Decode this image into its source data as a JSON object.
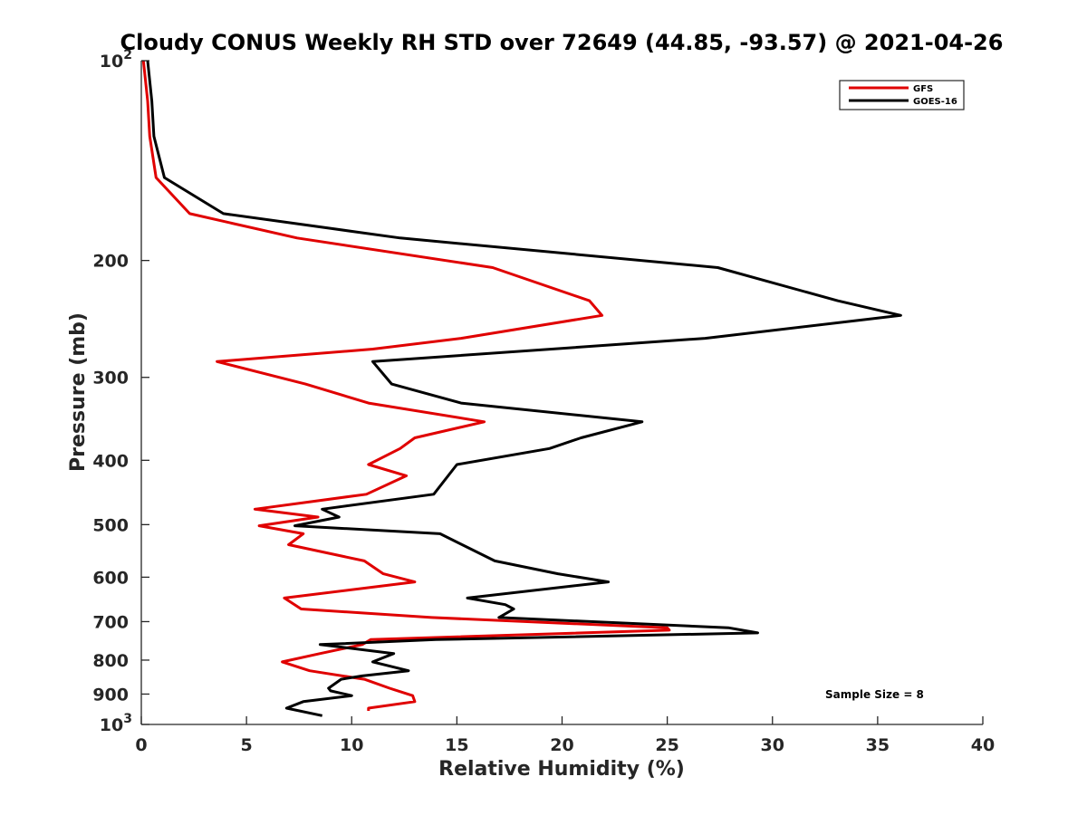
{
  "chart_data": {
    "type": "line",
    "title": "Cloudy CONUS Weekly RH STD over 72649 (44.85, -93.57) @ 2021-04-26",
    "xlabel": "Relative Humidity (%)",
    "ylabel": "Pressure (mb)",
    "xlim": [
      0,
      40
    ],
    "ylim": [
      100,
      1000
    ],
    "y_scale": "log",
    "y_reversed": true,
    "grid": false,
    "legend_position": "top-right",
    "x_ticks": [
      0,
      5,
      10,
      15,
      20,
      25,
      30,
      35,
      40
    ],
    "y_ticks": [
      {
        "value": 100,
        "label": "10",
        "sup": "2"
      },
      {
        "value": 200,
        "label": "200"
      },
      {
        "value": 300,
        "label": "300"
      },
      {
        "value": 400,
        "label": "400"
      },
      {
        "value": 500,
        "label": "500"
      },
      {
        "value": 600,
        "label": "600"
      },
      {
        "value": 700,
        "label": "700"
      },
      {
        "value": 800,
        "label": "800"
      },
      {
        "value": 900,
        "label": "900"
      },
      {
        "value": 1000,
        "label": "10",
        "sup": "3"
      }
    ],
    "series": [
      {
        "name": "GFS",
        "color": "#e00000",
        "points": [
          [
            0.1,
            100
          ],
          [
            0.3,
            115
          ],
          [
            0.4,
            130
          ],
          [
            0.7,
            150
          ],
          [
            2.3,
            170
          ],
          [
            7.4,
            185
          ],
          [
            16.7,
            205
          ],
          [
            21.3,
            230
          ],
          [
            21.9,
            242
          ],
          [
            15.2,
            262
          ],
          [
            11.0,
            272
          ],
          [
            3.6,
            284
          ],
          [
            7.8,
            307
          ],
          [
            10.8,
            328
          ],
          [
            16.3,
            350
          ],
          [
            13.0,
            370
          ],
          [
            12.3,
            384
          ],
          [
            10.8,
            406
          ],
          [
            12.6,
            422
          ],
          [
            10.7,
            450
          ],
          [
            5.4,
            474
          ],
          [
            8.4,
            487
          ],
          [
            5.6,
            502
          ],
          [
            7.7,
            516
          ],
          [
            7.0,
            536
          ],
          [
            10.6,
            567
          ],
          [
            11.5,
            593
          ],
          [
            13.0,
            610
          ],
          [
            6.8,
            645
          ],
          [
            7.6,
            670
          ],
          [
            13.8,
            690
          ],
          [
            25.0,
            715
          ],
          [
            25.1,
            721
          ],
          [
            10.9,
            745
          ],
          [
            10.5,
            758
          ],
          [
            8.5,
            782
          ],
          [
            6.7,
            805
          ],
          [
            8.0,
            830
          ],
          [
            10.6,
            855
          ],
          [
            11.8,
            882
          ],
          [
            12.9,
            905
          ],
          [
            13.0,
            924
          ],
          [
            10.8,
            945
          ],
          [
            10.8,
            954
          ]
        ]
      },
      {
        "name": "GOES-16",
        "color": "#000000",
        "points": [
          [
            0.3,
            100
          ],
          [
            0.5,
            115
          ],
          [
            0.6,
            130
          ],
          [
            1.1,
            150
          ],
          [
            3.9,
            170
          ],
          [
            12.3,
            185
          ],
          [
            27.4,
            205
          ],
          [
            33.1,
            230
          ],
          [
            36.1,
            242
          ],
          [
            26.8,
            262
          ],
          [
            11.0,
            284
          ],
          [
            11.9,
            307
          ],
          [
            15.2,
            328
          ],
          [
            23.8,
            350
          ],
          [
            20.9,
            370
          ],
          [
            19.4,
            384
          ],
          [
            15.0,
            406
          ],
          [
            13.9,
            450
          ],
          [
            8.6,
            474
          ],
          [
            9.4,
            487
          ],
          [
            7.3,
            502
          ],
          [
            14.2,
            516
          ],
          [
            16.8,
            567
          ],
          [
            19.8,
            593
          ],
          [
            22.2,
            610
          ],
          [
            15.5,
            645
          ],
          [
            17.3,
            660
          ],
          [
            17.7,
            670
          ],
          [
            17.0,
            690
          ],
          [
            27.9,
            715
          ],
          [
            29.3,
            728
          ],
          [
            14.0,
            745
          ],
          [
            8.5,
            758
          ],
          [
            12.0,
            782
          ],
          [
            11.0,
            805
          ],
          [
            12.7,
            830
          ],
          [
            10.5,
            845
          ],
          [
            9.5,
            855
          ],
          [
            8.9,
            882
          ],
          [
            9.0,
            890
          ],
          [
            10.0,
            905
          ],
          [
            7.7,
            924
          ],
          [
            6.9,
            945
          ],
          [
            8.6,
            970
          ]
        ]
      }
    ],
    "annotation": "Sample Size = 8"
  }
}
